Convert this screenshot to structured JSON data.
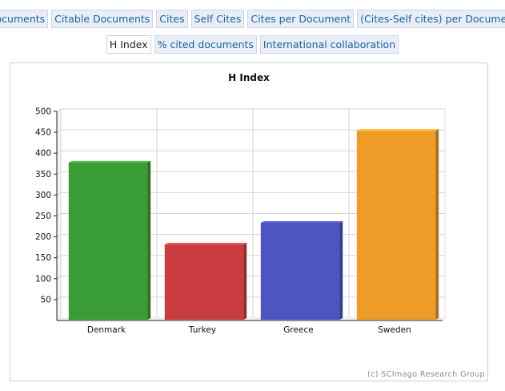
{
  "tabs_row1": [
    {
      "label": "Documents"
    },
    {
      "label": "Citable Documents"
    },
    {
      "label": "Cites"
    },
    {
      "label": "Self Cites"
    },
    {
      "label": "Cites per Document"
    },
    {
      "label": "(Cites-Self cites) per Document"
    }
  ],
  "tabs_row2": [
    {
      "label": "H Index",
      "active": true
    },
    {
      "label": "% cited documents"
    },
    {
      "label": "International collaboration"
    }
  ],
  "chart_data": {
    "type": "bar",
    "title": "H Index",
    "categories": [
      "Denmark",
      "Turkey",
      "Greece",
      "Sweden"
    ],
    "values": [
      372,
      176,
      228,
      448
    ],
    "colors": [
      "#3a9c35",
      "#c93c40",
      "#4d55c0",
      "#ee9b28"
    ],
    "ylim": [
      0,
      500
    ],
    "yticks": [
      50,
      100,
      150,
      200,
      250,
      300,
      350,
      400,
      450,
      500
    ],
    "grid": true,
    "xlabel": "",
    "ylabel": ""
  },
  "footer": {
    "credit": "(c) SCImago Research Group"
  }
}
